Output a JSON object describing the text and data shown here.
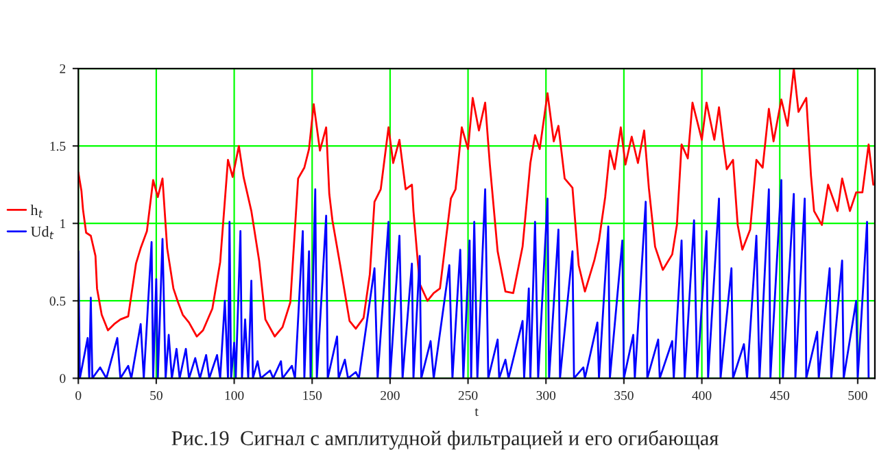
{
  "chart_data": {
    "type": "line",
    "xlabel": "t",
    "annotations": [
      "Рис.19  Сигнал с амплитудной фильтрацией и его огибающая"
    ],
    "xlim": [
      0,
      511
    ],
    "xticks": [
      0,
      50,
      100,
      150,
      200,
      250,
      300,
      350,
      400,
      450,
      500
    ],
    "ylim": [
      0,
      2
    ],
    "yticks": [
      0,
      0.5,
      1,
      1.5,
      2
    ],
    "grid": true,
    "legend": "left",
    "series": [
      {
        "name": "h$_{t}$",
        "color": "#ff0000",
        "x": [
          0,
          2,
          3,
          5,
          8,
          11,
          12,
          15,
          19,
          23,
          27,
          32,
          37,
          40,
          44,
          48,
          51,
          54,
          57,
          61,
          64,
          67,
          71,
          76,
          80,
          86,
          91,
          96,
          99,
          103,
          106,
          111,
          116,
          120,
          126,
          131,
          136,
          141,
          145,
          148,
          151,
          155,
          159,
          161,
          163,
          168,
          174,
          178,
          183,
          187,
          190,
          194,
          199,
          202,
          206,
          210,
          214,
          215,
          219,
          224,
          228,
          232,
          239,
          242,
          246,
          250,
          253,
          257,
          261,
          264,
          269,
          274,
          279,
          285,
          290,
          293,
          296,
          301,
          305,
          308,
          312,
          317,
          321,
          325,
          331,
          334,
          338,
          341,
          344,
          348,
          351,
          355,
          359,
          363,
          366,
          370,
          375,
          381,
          384,
          387,
          391,
          394,
          400,
          403,
          408,
          411,
          414,
          416,
          420,
          423,
          426,
          431,
          435,
          439,
          443,
          446,
          451,
          455,
          459,
          462,
          467,
          470,
          472,
          477,
          481,
          487,
          490,
          495,
          499,
          503,
          507,
          510
        ],
        "values": [
          1.33,
          1.21,
          1.09,
          0.94,
          0.92,
          0.79,
          0.58,
          0.41,
          0.31,
          0.35,
          0.38,
          0.4,
          0.74,
          0.84,
          0.95,
          1.28,
          1.17,
          1.29,
          0.84,
          0.58,
          0.49,
          0.41,
          0.36,
          0.27,
          0.31,
          0.45,
          0.75,
          1.41,
          1.3,
          1.5,
          1.3,
          1.08,
          0.76,
          0.38,
          0.27,
          0.33,
          0.49,
          1.29,
          1.36,
          1.48,
          1.77,
          1.47,
          1.62,
          1.19,
          1.02,
          0.73,
          0.37,
          0.32,
          0.39,
          0.67,
          1.14,
          1.22,
          1.62,
          1.39,
          1.54,
          1.22,
          1.25,
          1.08,
          0.61,
          0.5,
          0.55,
          0.58,
          1.16,
          1.22,
          1.62,
          1.48,
          1.81,
          1.6,
          1.78,
          1.38,
          0.82,
          0.56,
          0.55,
          0.85,
          1.39,
          1.57,
          1.48,
          1.84,
          1.53,
          1.63,
          1.29,
          1.23,
          0.73,
          0.56,
          0.76,
          0.89,
          1.17,
          1.47,
          1.35,
          1.62,
          1.38,
          1.56,
          1.39,
          1.6,
          1.23,
          0.85,
          0.7,
          0.8,
          0.99,
          1.51,
          1.42,
          1.78,
          1.54,
          1.78,
          1.54,
          1.75,
          1.5,
          1.35,
          1.41,
          0.99,
          0.83,
          0.96,
          1.41,
          1.36,
          1.74,
          1.53,
          1.8,
          1.63,
          2.0,
          1.72,
          1.81,
          1.31,
          1.08,
          0.99,
          1.25,
          1.08,
          1.29,
          1.08,
          1.2,
          1.2,
          1.51,
          1.25
        ]
      },
      {
        "name": "Ud$_{t}$",
        "color": "#0000ff",
        "x": [
          0,
          1,
          6,
          7,
          8,
          9,
          14,
          18,
          25,
          27,
          32,
          34,
          40,
          42,
          47,
          48,
          50,
          51,
          54,
          56,
          58,
          60,
          63,
          65,
          69,
          71,
          75,
          78,
          82,
          84,
          89,
          91,
          94,
          96,
          97,
          98,
          100,
          101,
          104,
          105,
          107,
          109,
          111,
          112,
          115,
          117,
          123,
          125,
          130,
          131,
          137,
          139,
          144,
          145,
          148,
          149,
          152,
          153,
          159,
          160,
          166,
          167,
          171,
          173,
          178,
          180,
          190,
          192,
          199,
          200,
          206,
          208,
          214,
          215,
          219,
          220,
          226,
          228,
          238,
          240,
          245,
          247,
          251,
          252,
          254,
          256,
          261,
          263,
          269,
          270,
          274,
          276,
          285,
          286,
          289,
          290,
          293,
          295,
          301,
          302,
          308,
          309,
          317,
          318,
          324,
          325,
          333,
          334,
          340,
          341,
          349,
          350,
          356,
          357,
          364,
          365,
          372,
          373,
          381,
          382,
          387,
          389,
          395,
          397,
          403,
          404,
          411,
          412,
          419,
          420,
          427,
          429,
          435,
          437,
          443,
          444,
          451,
          452,
          459,
          460,
          466,
          467,
          474,
          475,
          482,
          483,
          490,
          491,
          499,
          500,
          506,
          507
        ],
        "values": [
          0.82,
          0,
          0.26,
          0,
          0.52,
          0,
          0.07,
          0,
          0.26,
          0,
          0.08,
          0,
          0.35,
          0,
          0.88,
          0,
          0.64,
          0,
          0.9,
          0,
          0.28,
          0,
          0.19,
          0,
          0.19,
          0,
          0.13,
          0,
          0.15,
          0,
          0.15,
          0,
          0.5,
          0,
          1.01,
          0,
          0.23,
          0,
          0.95,
          0,
          0.38,
          0,
          0.63,
          0,
          0.11,
          0,
          0.05,
          0,
          0.11,
          0,
          0.08,
          0,
          0.95,
          0,
          0.82,
          0,
          1.22,
          0,
          1.05,
          0,
          0.27,
          0,
          0.12,
          0,
          0.04,
          0,
          0.71,
          0,
          1.01,
          0,
          0.92,
          0,
          0.74,
          0,
          0.79,
          0,
          0.24,
          0,
          0.73,
          0,
          0.83,
          0,
          0.89,
          0,
          1.01,
          0,
          1.22,
          0,
          0.25,
          0,
          0.12,
          0,
          0.37,
          0,
          0.58,
          0,
          1.01,
          0,
          1.16,
          0,
          0.96,
          0,
          0.82,
          0,
          0.07,
          0,
          0.36,
          0,
          0.98,
          0,
          0.89,
          0,
          0.28,
          0,
          1.14,
          0,
          0.25,
          0,
          0.24,
          0,
          0.89,
          0,
          1.02,
          0,
          0.95,
          0,
          1.16,
          0,
          0.71,
          0,
          0.22,
          0,
          0.92,
          0,
          1.22,
          0,
          1.28,
          0,
          1.19,
          0,
          1.16,
          0,
          0.3,
          0,
          0.71,
          0,
          0.76,
          0,
          0.5,
          0,
          1.01,
          0
        ]
      }
    ]
  }
}
